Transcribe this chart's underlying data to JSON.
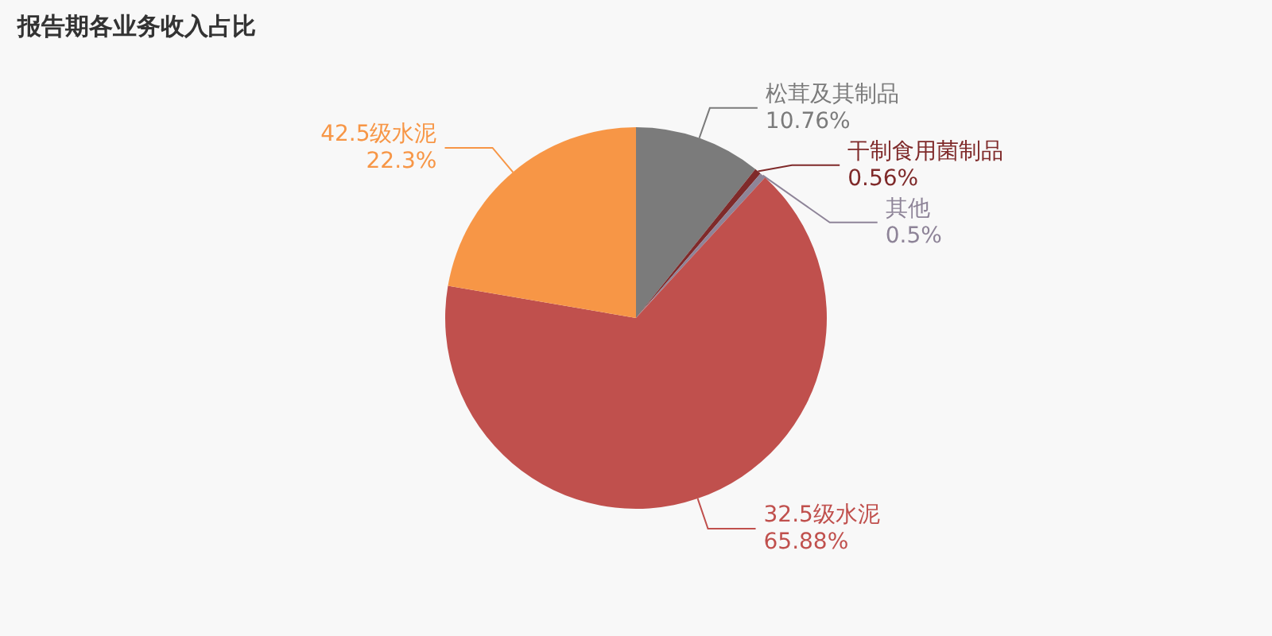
{
  "chart_data": {
    "type": "pie",
    "title": "报告期各业务收入占比",
    "categories": [
      "松茸及其制品",
      "干制食用菌制品",
      "其他",
      "32.5级水泥",
      "42.5级水泥"
    ],
    "values": [
      10.76,
      0.56,
      0.5,
      65.88,
      22.3
    ],
    "value_labels": [
      "10.76%",
      "0.56%",
      "0.5%",
      "65.88%",
      "22.3%"
    ],
    "colors": [
      "#7b7b7b",
      "#7f2a2a",
      "#8e8498",
      "#c0504d",
      "#f79646"
    ],
    "legend": false
  }
}
